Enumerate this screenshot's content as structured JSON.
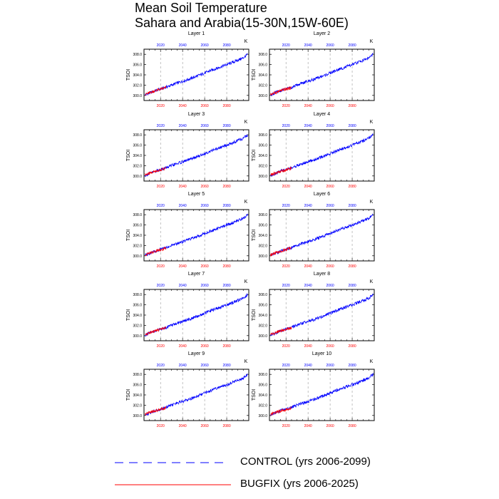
{
  "title": {
    "line1": "Mean Soil Temperature",
    "line2": "Sahara and Arabia(15-30N,15W-60E)"
  },
  "colors": {
    "control": "#0000ff",
    "bugfix": "#ff0000",
    "top_ticks": "#0000ff",
    "bottom_ticks": "#ff0000",
    "grid": "#999999"
  },
  "legend": {
    "control": "CONTROL (yrs 2006-2099)",
    "bugfix": "BUGFIX (yrs 2006-2025)"
  },
  "chart_data": {
    "type": "line",
    "ylabel": "TSOI",
    "units_label": "K",
    "xlim": [
      2005,
      2100
    ],
    "ylim": [
      299.0,
      309.0
    ],
    "y_ticks": [
      300.0,
      302.0,
      304.0,
      306.0,
      308.0
    ],
    "y_tick_labels": [
      "300.0",
      "302.0",
      "304.0",
      "306.0",
      "308.0"
    ],
    "x_ticks": [
      2020,
      2040,
      2060,
      2080
    ],
    "x_tick_labels": [
      "2020",
      "2040",
      "2060",
      "2080"
    ],
    "grid": "vertical dashed at labeled years",
    "panels": [
      {
        "title": "Layer 1",
        "series": [
          {
            "name": "CONTROL",
            "x": [
              2006,
              2015,
              2025,
              2035,
              2045,
              2055,
              2065,
              2075,
              2085,
              2095,
              2099
            ],
            "y": [
              300.1,
              300.9,
              301.6,
              302.4,
              303.1,
              303.9,
              304.8,
              305.6,
              306.4,
              307.3,
              308.0
            ]
          },
          {
            "name": "BUGFIX",
            "x": [
              2006,
              2010,
              2015,
              2020,
              2025
            ],
            "y": [
              300.2,
              300.5,
              300.9,
              301.2,
              301.5
            ]
          }
        ]
      },
      {
        "title": "Layer 2",
        "series": [
          {
            "name": "CONTROL",
            "x": [
              2006,
              2015,
              2025,
              2035,
              2045,
              2055,
              2065,
              2075,
              2085,
              2095,
              2099
            ],
            "y": [
              300.1,
              300.9,
              301.6,
              302.4,
              303.1,
              303.9,
              304.8,
              305.6,
              306.4,
              307.3,
              308.0
            ]
          },
          {
            "name": "BUGFIX",
            "x": [
              2006,
              2010,
              2015,
              2020,
              2025
            ],
            "y": [
              300.2,
              300.5,
              300.9,
              301.2,
              301.5
            ]
          }
        ]
      },
      {
        "title": "Layer 3",
        "series": [
          {
            "name": "CONTROL",
            "x": [
              2006,
              2015,
              2025,
              2035,
              2045,
              2055,
              2065,
              2075,
              2085,
              2095,
              2099
            ],
            "y": [
              300.1,
              300.9,
              301.6,
              302.4,
              303.1,
              303.9,
              304.8,
              305.6,
              306.4,
              307.3,
              308.0
            ]
          },
          {
            "name": "BUGFIX",
            "x": [
              2006,
              2010,
              2015,
              2020,
              2025
            ],
            "y": [
              300.2,
              300.5,
              300.9,
              301.2,
              301.5
            ]
          }
        ]
      },
      {
        "title": "Layer 4",
        "series": [
          {
            "name": "CONTROL",
            "x": [
              2006,
              2015,
              2025,
              2035,
              2045,
              2055,
              2065,
              2075,
              2085,
              2095,
              2099
            ],
            "y": [
              300.1,
              300.9,
              301.6,
              302.4,
              303.1,
              303.9,
              304.8,
              305.6,
              306.4,
              307.3,
              308.0
            ]
          },
          {
            "name": "BUGFIX",
            "x": [
              2006,
              2010,
              2015,
              2020,
              2025
            ],
            "y": [
              300.2,
              300.5,
              300.9,
              301.2,
              301.5
            ]
          }
        ]
      },
      {
        "title": "Layer 5",
        "series": [
          {
            "name": "CONTROL",
            "x": [
              2006,
              2015,
              2025,
              2035,
              2045,
              2055,
              2065,
              2075,
              2085,
              2095,
              2099
            ],
            "y": [
              300.1,
              300.9,
              301.6,
              302.4,
              303.1,
              303.9,
              304.8,
              305.6,
              306.4,
              307.3,
              308.0
            ]
          },
          {
            "name": "BUGFIX",
            "x": [
              2006,
              2010,
              2015,
              2020,
              2025
            ],
            "y": [
              300.2,
              300.5,
              300.9,
              301.2,
              301.5
            ]
          }
        ]
      },
      {
        "title": "Layer 6",
        "series": [
          {
            "name": "CONTROL",
            "x": [
              2006,
              2015,
              2025,
              2035,
              2045,
              2055,
              2065,
              2075,
              2085,
              2095,
              2099
            ],
            "y": [
              300.1,
              300.9,
              301.6,
              302.4,
              303.1,
              303.9,
              304.8,
              305.6,
              306.4,
              307.3,
              308.0
            ]
          },
          {
            "name": "BUGFIX",
            "x": [
              2006,
              2010,
              2015,
              2020,
              2025
            ],
            "y": [
              300.2,
              300.5,
              300.9,
              301.2,
              301.5
            ]
          }
        ]
      },
      {
        "title": "Layer 7",
        "series": [
          {
            "name": "CONTROL",
            "x": [
              2006,
              2015,
              2025,
              2035,
              2045,
              2055,
              2065,
              2075,
              2085,
              2095,
              2099
            ],
            "y": [
              300.1,
              300.9,
              301.6,
              302.4,
              303.1,
              303.9,
              304.8,
              305.6,
              306.4,
              307.3,
              308.0
            ]
          },
          {
            "name": "BUGFIX",
            "x": [
              2006,
              2010,
              2015,
              2020,
              2025
            ],
            "y": [
              300.2,
              300.5,
              300.9,
              301.2,
              301.5
            ]
          }
        ]
      },
      {
        "title": "Layer 8",
        "series": [
          {
            "name": "CONTROL",
            "x": [
              2006,
              2015,
              2025,
              2035,
              2045,
              2055,
              2065,
              2075,
              2085,
              2095,
              2099
            ],
            "y": [
              300.1,
              300.9,
              301.6,
              302.4,
              303.1,
              303.9,
              304.8,
              305.6,
              306.4,
              307.3,
              308.0
            ]
          },
          {
            "name": "BUGFIX",
            "x": [
              2006,
              2010,
              2015,
              2020,
              2025
            ],
            "y": [
              300.2,
              300.5,
              300.9,
              301.2,
              301.5
            ]
          }
        ]
      },
      {
        "title": "Layer 9",
        "series": [
          {
            "name": "CONTROL",
            "x": [
              2006,
              2015,
              2025,
              2035,
              2045,
              2055,
              2065,
              2075,
              2085,
              2095,
              2099
            ],
            "y": [
              300.1,
              300.9,
              301.6,
              302.4,
              303.1,
              303.9,
              304.8,
              305.6,
              306.4,
              307.3,
              308.0
            ]
          },
          {
            "name": "BUGFIX",
            "x": [
              2006,
              2010,
              2015,
              2020,
              2025
            ],
            "y": [
              300.2,
              300.5,
              300.9,
              301.2,
              301.5
            ]
          }
        ]
      },
      {
        "title": "Layer 10",
        "series": [
          {
            "name": "CONTROL",
            "x": [
              2006,
              2015,
              2025,
              2035,
              2045,
              2055,
              2065,
              2075,
              2085,
              2095,
              2099
            ],
            "y": [
              300.1,
              300.9,
              301.6,
              302.4,
              303.1,
              303.9,
              304.8,
              305.6,
              306.4,
              307.3,
              308.0
            ]
          },
          {
            "name": "BUGFIX",
            "x": [
              2006,
              2010,
              2015,
              2020,
              2025
            ],
            "y": [
              300.2,
              300.5,
              300.9,
              301.2,
              301.5
            ]
          }
        ]
      }
    ]
  }
}
